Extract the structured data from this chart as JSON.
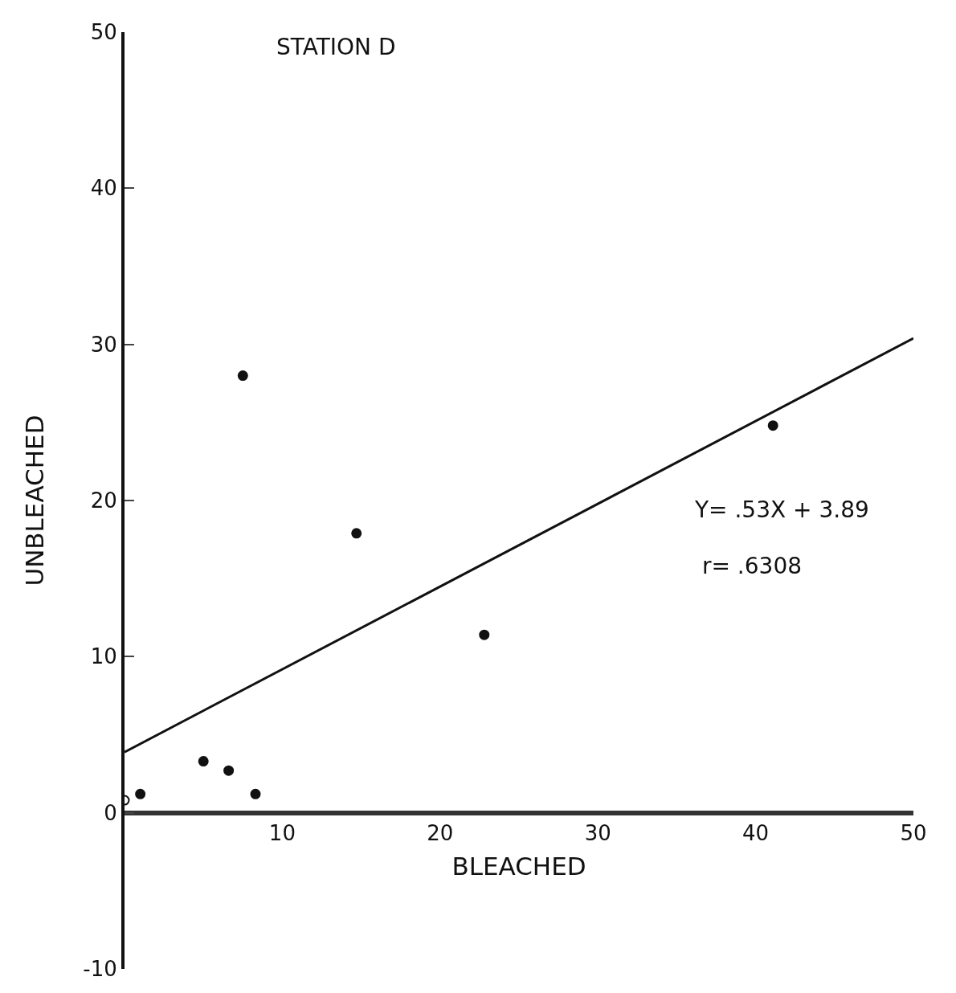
{
  "chart_data": {
    "type": "scatter",
    "title": "STATION D",
    "xlabel": "BLEACHED",
    "ylabel": "UNBLEACHED",
    "xlim": [
      0,
      50
    ],
    "ylim": [
      -10,
      50
    ],
    "xticks": [
      10,
      20,
      30,
      40,
      50
    ],
    "yticks": [
      -10,
      0,
      10,
      20,
      30,
      40,
      50
    ],
    "legend": false,
    "series": [
      {
        "marker": "circle",
        "color": "#111111",
        "x": [
          1,
          5,
          6.6,
          8.3,
          7.5,
          14.7,
          22.8,
          41.1
        ],
        "values": [
          1.2,
          3.3,
          2.7,
          1.2,
          28,
          17.9,
          11.4,
          24.8
        ]
      },
      {
        "marker": "circle-open",
        "color": "#111111",
        "x": [
          0
        ],
        "values": [
          0.8
        ]
      },
      {
        "type": "line",
        "marker": "none",
        "line_style": "solid",
        "color": "#111111",
        "x": [
          0,
          50
        ],
        "values": [
          3.89,
          30.39
        ]
      }
    ],
    "annotations": [
      "Y= .53X + 3.89",
      "r= .6308"
    ]
  }
}
